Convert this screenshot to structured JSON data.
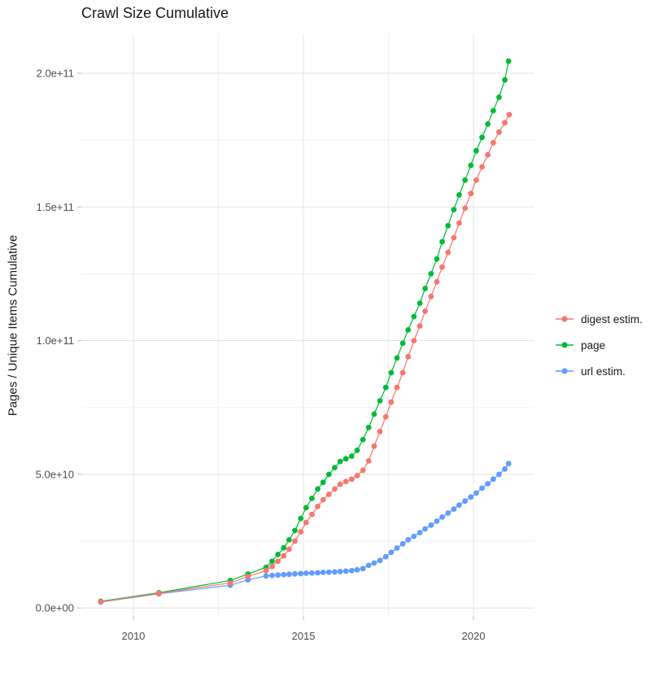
{
  "title": "Crawl Size Cumulative",
  "background_color": "#ffffff",
  "grid_color_major": "#e3e3e3",
  "grid_color_minor": "#f0f0f0",
  "tick_color": "#bdbdbd",
  "text_color_ticks": "#4d4d4d",
  "text_color_title": "#1a1a1a",
  "chart_data": {
    "type": "scatter",
    "title": "Crawl Size Cumulative",
    "xlabel": "",
    "ylabel": "Pages / Unique Items Cumulative",
    "grid": true,
    "legend_position": "right",
    "xlim": [
      2008.47,
      2021.77
    ],
    "ylim_e9": [
      -3,
      214.6
    ],
    "x_major_ticks": [
      2010,
      2015,
      2020
    ],
    "x_major_labels": [
      "2010",
      "2015",
      "2020"
    ],
    "x_minor_ticks": [
      2012.5,
      2017.5
    ],
    "y_major_ticks_e9": [
      0,
      50,
      100,
      150,
      200
    ],
    "y_major_labels": [
      "0.0e+00",
      "5.0e+10",
      "1.0e+11",
      "1.5e+11",
      "2.0e+11"
    ],
    "y_minor_ticks_e9": [
      25,
      75,
      125,
      175
    ],
    "value_unit": 1000000000.0,
    "draw_order": [
      2,
      1,
      0
    ],
    "series": [
      {
        "name": "digest estim.",
        "color": "#F8766D",
        "points_year_value_e9": [
          [
            2009.04,
            2.3
          ],
          [
            2010.75,
            5.5
          ],
          [
            2012.85,
            9.4
          ],
          [
            2013.37,
            11.8
          ],
          [
            2013.9,
            14.0
          ],
          [
            2014.08,
            15.5
          ],
          [
            2014.25,
            17.5
          ],
          [
            2014.42,
            19.5
          ],
          [
            2014.58,
            22.0
          ],
          [
            2014.75,
            25.0
          ],
          [
            2014.92,
            28.5
          ],
          [
            2015.08,
            32.0
          ],
          [
            2015.25,
            35.0
          ],
          [
            2015.42,
            38.0
          ],
          [
            2015.58,
            40.5
          ],
          [
            2015.75,
            42.5
          ],
          [
            2015.92,
            44.5
          ],
          [
            2016.08,
            46.3
          ],
          [
            2016.25,
            47.3
          ],
          [
            2016.42,
            48.2
          ],
          [
            2016.58,
            49.5
          ],
          [
            2016.75,
            51.5
          ],
          [
            2016.92,
            55.0
          ],
          [
            2017.08,
            60.5
          ],
          [
            2017.25,
            66.0
          ],
          [
            2017.42,
            71.5
          ],
          [
            2017.58,
            77.0
          ],
          [
            2017.75,
            82.5
          ],
          [
            2017.92,
            88.0
          ],
          [
            2018.08,
            94.0
          ],
          [
            2018.25,
            100.0
          ],
          [
            2018.42,
            105.5
          ],
          [
            2018.58,
            111.0
          ],
          [
            2018.75,
            116.5
          ],
          [
            2018.92,
            122.0
          ],
          [
            2019.08,
            127.5
          ],
          [
            2019.25,
            133.0
          ],
          [
            2019.42,
            138.5
          ],
          [
            2019.58,
            144.0
          ],
          [
            2019.75,
            149.5
          ],
          [
            2019.92,
            155.0
          ],
          [
            2020.08,
            160.0
          ],
          [
            2020.25,
            165.0
          ],
          [
            2020.42,
            169.5
          ],
          [
            2020.58,
            174.0
          ],
          [
            2020.75,
            178.0
          ],
          [
            2020.92,
            181.5
          ],
          [
            2021.05,
            184.5
          ]
        ]
      },
      {
        "name": "page",
        "color": "#00BA38",
        "points_year_value_e9": [
          [
            2009.04,
            2.5
          ],
          [
            2010.75,
            5.7
          ],
          [
            2012.85,
            10.3
          ],
          [
            2013.37,
            12.7
          ],
          [
            2013.9,
            15.2
          ],
          [
            2014.08,
            17.5
          ],
          [
            2014.25,
            20.0
          ],
          [
            2014.42,
            22.5
          ],
          [
            2014.58,
            25.5
          ],
          [
            2014.75,
            29.0
          ],
          [
            2014.92,
            33.5
          ],
          [
            2015.08,
            37.5
          ],
          [
            2015.25,
            41.0
          ],
          [
            2015.42,
            44.5
          ],
          [
            2015.58,
            47.0
          ],
          [
            2015.75,
            50.0
          ],
          [
            2015.92,
            52.5
          ],
          [
            2016.08,
            54.8
          ],
          [
            2016.25,
            55.8
          ],
          [
            2016.42,
            56.8
          ],
          [
            2016.58,
            59.0
          ],
          [
            2016.75,
            63.0
          ],
          [
            2016.92,
            67.5
          ],
          [
            2017.08,
            72.5
          ],
          [
            2017.25,
            77.5
          ],
          [
            2017.42,
            82.5
          ],
          [
            2017.58,
            88.0
          ],
          [
            2017.75,
            93.5
          ],
          [
            2017.92,
            99.0
          ],
          [
            2018.08,
            104.0
          ],
          [
            2018.25,
            109.0
          ],
          [
            2018.42,
            114.0
          ],
          [
            2018.58,
            119.5
          ],
          [
            2018.75,
            125.0
          ],
          [
            2018.92,
            130.5
          ],
          [
            2019.08,
            137.0
          ],
          [
            2019.25,
            143.0
          ],
          [
            2019.42,
            149.0
          ],
          [
            2019.58,
            154.5
          ],
          [
            2019.75,
            160.0
          ],
          [
            2019.92,
            165.5
          ],
          [
            2020.08,
            171.0
          ],
          [
            2020.25,
            176.0
          ],
          [
            2020.42,
            181.0
          ],
          [
            2020.58,
            186.0
          ],
          [
            2020.75,
            191.0
          ],
          [
            2020.92,
            197.5
          ],
          [
            2021.03,
            204.5
          ]
        ]
      },
      {
        "name": "url estim.",
        "color": "#619CFF",
        "points_year_value_e9": [
          [
            2009.04,
            2.2
          ],
          [
            2010.75,
            5.3
          ],
          [
            2012.85,
            8.5
          ],
          [
            2013.37,
            10.5
          ],
          [
            2013.9,
            12.0
          ],
          [
            2014.08,
            12.2
          ],
          [
            2014.25,
            12.35
          ],
          [
            2014.42,
            12.5
          ],
          [
            2014.58,
            12.6
          ],
          [
            2014.75,
            12.75
          ],
          [
            2014.92,
            12.9
          ],
          [
            2015.08,
            13.0
          ],
          [
            2015.25,
            13.1
          ],
          [
            2015.42,
            13.2
          ],
          [
            2015.58,
            13.3
          ],
          [
            2015.75,
            13.4
          ],
          [
            2015.92,
            13.5
          ],
          [
            2016.08,
            13.65
          ],
          [
            2016.25,
            13.8
          ],
          [
            2016.42,
            14.0
          ],
          [
            2016.58,
            14.3
          ],
          [
            2016.75,
            14.7
          ],
          [
            2016.92,
            16.0
          ],
          [
            2017.08,
            16.8
          ],
          [
            2017.25,
            17.8
          ],
          [
            2017.42,
            19.2
          ],
          [
            2017.58,
            20.8
          ],
          [
            2017.75,
            22.4
          ],
          [
            2017.92,
            24.0
          ],
          [
            2018.08,
            25.5
          ],
          [
            2018.25,
            26.8
          ],
          [
            2018.42,
            28.2
          ],
          [
            2018.58,
            29.6
          ],
          [
            2018.75,
            31.0
          ],
          [
            2018.92,
            32.5
          ],
          [
            2019.08,
            34.0
          ],
          [
            2019.25,
            35.5
          ],
          [
            2019.42,
            37.0
          ],
          [
            2019.58,
            38.5
          ],
          [
            2019.75,
            40.0
          ],
          [
            2019.92,
            41.5
          ],
          [
            2020.08,
            43.0
          ],
          [
            2020.25,
            44.8
          ],
          [
            2020.42,
            46.5
          ],
          [
            2020.58,
            48.2
          ],
          [
            2020.75,
            50.0
          ],
          [
            2020.92,
            52.0
          ],
          [
            2021.03,
            54.0
          ]
        ]
      }
    ]
  }
}
